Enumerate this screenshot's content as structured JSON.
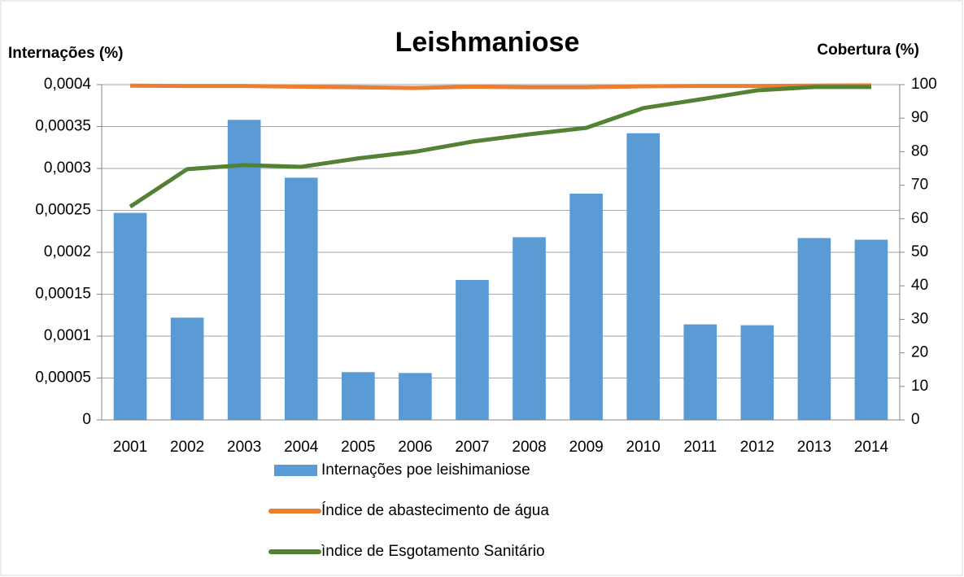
{
  "chart_data": {
    "type": "bar",
    "title": "Leishmaniose",
    "y_label": "Internações (%)",
    "y2_label": "Cobertura (%)",
    "categories": [
      "2001",
      "2002",
      "2003",
      "2004",
      "2005",
      "2006",
      "2007",
      "2008",
      "2009",
      "2010",
      "2011",
      "2012",
      "2013",
      "2014"
    ],
    "series": [
      {
        "name": "Internações poe leishimaniose",
        "type": "bar",
        "axis": "y",
        "color": "#5b9bd5",
        "values": [
          0.000247,
          0.000122,
          0.000358,
          0.000289,
          5.7e-05,
          5.6e-05,
          0.000167,
          0.000218,
          0.00027,
          0.000342,
          0.000114,
          0.000113,
          0.000217,
          0.000215
        ]
      },
      {
        "name": "Índice de abastecimento de água",
        "type": "line",
        "axis": "y2",
        "color": "#ed7d31",
        "values": [
          99.7,
          99.6,
          99.6,
          99.4,
          99.2,
          99,
          99.4,
          99.2,
          99.2,
          99.5,
          99.6,
          99.6,
          99.7,
          99.8
        ]
      },
      {
        "name": "ìndice de Esgotamento Sanitário",
        "type": "line",
        "axis": "y2",
        "color": "#548235",
        "values": [
          63.6,
          74.8,
          76,
          75.5,
          78,
          80,
          83,
          85.2,
          87.1,
          93,
          95.6,
          98.3,
          99.3,
          99.3
        ]
      }
    ],
    "ylim": [
      0,
      0.0004
    ],
    "yticks": [
      0,
      {
        "value": 5e-05,
        "label": "0,00005"
      },
      {
        "value": 0.0001,
        "label": "0,0001"
      },
      {
        "value": 0.00015,
        "label": "0,00015"
      },
      {
        "value": 0.0002,
        "label": "0,0002"
      },
      {
        "value": 0.00025,
        "label": "0,00025"
      },
      {
        "value": 0.0003,
        "label": "0,0003"
      },
      {
        "value": 0.00035,
        "label": "0,00035"
      },
      {
        "value": 0.0004,
        "label": "0,0004"
      }
    ],
    "y2lim": [
      0,
      100
    ],
    "y2ticks": [
      0,
      10,
      20,
      30,
      40,
      50,
      60,
      70,
      80,
      90,
      100
    ],
    "grid": true
  }
}
